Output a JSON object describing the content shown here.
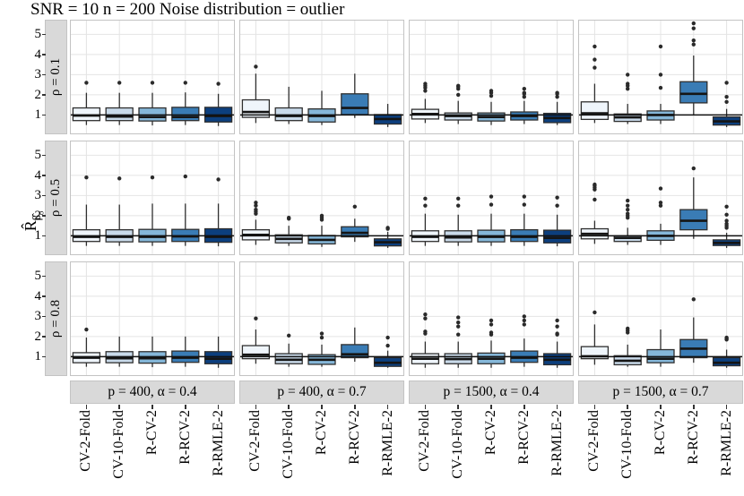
{
  "title": "SNR = 10 n = 200 Noise distribution = outlier",
  "ylabel": {
    "main": "R̂",
    "sub": "β̂",
    "subsub": "o"
  },
  "palette": {
    "box_fills": [
      "#eff5fb",
      "#c9daea",
      "#85b7d9",
      "#3a7cb5",
      "#0c3f7e"
    ],
    "box_stroke": "#2f2f2f",
    "median_line": "#151515",
    "reference_line": "#111111",
    "grid_major": "#e4e4e4",
    "panel_border": "#c3c3c3",
    "strip_background": "#d9d9d9",
    "outlier_point": "#2a2a2a"
  },
  "chart_data": {
    "type": "boxplot",
    "title": "SNR = 10 n = 200 Noise distribution = outlier",
    "ylabel": "R̂_β̂o",
    "facet_rows": [
      "ρ = 0.1",
      "ρ = 0.5",
      "ρ = 0.8"
    ],
    "facet_cols": [
      "p = 400, α = 0.4",
      "p = 400, α = 0.7",
      "p = 1500, α = 0.4",
      "p = 1500, α = 0.7"
    ],
    "categories": [
      "CV-2-Fold",
      "CV-10-Fold",
      "R-CV-2",
      "R-RCV-2",
      "R-RMLE-2"
    ],
    "y_ticks": [
      1,
      2,
      3,
      4,
      5
    ],
    "ylim": [
      0.04,
      5.73
    ],
    "reference_line_y": 1,
    "grid": "major-horizontal-and-vertical",
    "legend": "none",
    "box_format": [
      "low_whisker",
      "q1",
      "median",
      "q3",
      "high_whisker",
      "outliers"
    ],
    "panels": [
      {
        "row": 0,
        "col": 0,
        "boxes": [
          [
            0.5,
            0.72,
            0.97,
            1.35,
            2.1,
            [
              2.6
            ]
          ],
          [
            0.5,
            0.72,
            0.92,
            1.35,
            2.1,
            [
              2.6
            ]
          ],
          [
            0.48,
            0.7,
            0.9,
            1.35,
            2.1,
            [
              2.6
            ]
          ],
          [
            0.5,
            0.72,
            0.9,
            1.38,
            2.12,
            [
              2.6
            ]
          ],
          [
            0.45,
            0.65,
            0.95,
            1.38,
            2.05,
            [
              2.55
            ]
          ]
        ]
      },
      {
        "row": 0,
        "col": 1,
        "boxes": [
          [
            0.6,
            0.88,
            1.15,
            1.75,
            3.05,
            [
              3.4
            ]
          ],
          [
            0.55,
            0.72,
            0.95,
            1.35,
            2.4,
            []
          ],
          [
            0.5,
            0.65,
            0.95,
            1.3,
            2.2,
            []
          ],
          [
            0.85,
            1.02,
            1.35,
            2.05,
            3.05,
            []
          ],
          [
            0.4,
            0.55,
            0.8,
            1.02,
            1.55,
            []
          ]
        ]
      },
      {
        "row": 0,
        "col": 2,
        "boxes": [
          [
            0.6,
            0.8,
            1.05,
            1.28,
            1.8,
            [
              2.2,
              2.35,
              2.45,
              2.55
            ]
          ],
          [
            0.55,
            0.75,
            0.95,
            1.1,
            1.7,
            [
              2.0,
              2.3,
              2.4,
              2.45
            ]
          ],
          [
            0.5,
            0.7,
            0.9,
            1.1,
            1.65,
            [
              1.95,
              2.1,
              2.2
            ]
          ],
          [
            0.55,
            0.75,
            0.95,
            1.15,
            1.7,
            [
              1.9,
              2.05,
              2.1,
              2.3
            ]
          ],
          [
            0.5,
            0.62,
            0.85,
            1.08,
            1.65,
            [
              1.9,
              2.05,
              2.1
            ]
          ]
        ]
      },
      {
        "row": 0,
        "col": 3,
        "boxes": [
          [
            0.6,
            0.78,
            1.08,
            1.65,
            2.55,
            [
              3.35,
              3.75,
              4.4
            ]
          ],
          [
            0.55,
            0.68,
            0.88,
            1.05,
            1.55,
            [
              2.3,
              2.45,
              2.55,
              3.0
            ]
          ],
          [
            0.55,
            0.75,
            1.0,
            1.2,
            1.55,
            [
              2.35,
              3.0,
              4.4
            ]
          ],
          [
            1.0,
            1.6,
            2.05,
            2.65,
            3.95,
            [
              4.5,
              4.7,
              5.3,
              5.55
            ]
          ],
          [
            0.4,
            0.5,
            0.68,
            0.9,
            1.3,
            [
              1.65,
              1.9,
              2.6
            ]
          ]
        ]
      },
      {
        "row": 1,
        "col": 0,
        "boxes": [
          [
            0.5,
            0.72,
            0.95,
            1.3,
            2.55,
            [
              3.9
            ]
          ],
          [
            0.5,
            0.7,
            0.95,
            1.3,
            2.55,
            [
              3.85
            ]
          ],
          [
            0.5,
            0.7,
            0.95,
            1.32,
            2.6,
            [
              3.9
            ]
          ],
          [
            0.5,
            0.72,
            0.97,
            1.32,
            2.6,
            [
              3.95
            ]
          ],
          [
            0.48,
            0.68,
            0.95,
            1.35,
            2.6,
            [
              3.8
            ]
          ]
        ]
      },
      {
        "row": 1,
        "col": 1,
        "boxes": [
          [
            0.55,
            0.8,
            1.05,
            1.3,
            1.8,
            [
              2.1,
              2.2,
              2.3,
              2.5,
              2.65
            ]
          ],
          [
            0.5,
            0.65,
            0.85,
            1.05,
            1.5,
            [
              1.85,
              1.9
            ]
          ],
          [
            0.45,
            0.6,
            0.8,
            1.02,
            1.5,
            [
              1.8,
              1.9,
              2.0
            ]
          ],
          [
            0.7,
            0.95,
            1.15,
            1.45,
            1.85,
            [
              2.45
            ]
          ],
          [
            0.4,
            0.5,
            0.68,
            0.85,
            1.2,
            [
              1.35,
              1.4
            ]
          ]
        ]
      },
      {
        "row": 1,
        "col": 2,
        "boxes": [
          [
            0.5,
            0.72,
            0.95,
            1.25,
            2.1,
            [
              2.5,
              2.85
            ]
          ],
          [
            0.5,
            0.7,
            0.92,
            1.25,
            2.05,
            [
              2.5,
              2.85
            ]
          ],
          [
            0.5,
            0.7,
            0.95,
            1.28,
            2.1,
            [
              2.55,
              2.95
            ]
          ],
          [
            0.5,
            0.72,
            0.95,
            1.3,
            2.1,
            [
              2.55,
              2.95
            ]
          ],
          [
            0.48,
            0.65,
            0.9,
            1.28,
            2.05,
            [
              2.5,
              2.9
            ]
          ]
        ]
      },
      {
        "row": 1,
        "col": 3,
        "boxes": [
          [
            0.6,
            0.85,
            1.1,
            1.35,
            1.75,
            [
              2.8,
              3.3,
              3.4,
              3.5,
              3.55
            ]
          ],
          [
            0.55,
            0.72,
            0.9,
            1.0,
            1.4,
            [
              1.9,
              2.0,
              2.1,
              2.3,
              2.5,
              2.75
            ]
          ],
          [
            0.55,
            0.78,
            1.0,
            1.25,
            1.6,
            [
              2.5,
              2.65,
              3.35
            ]
          ],
          [
            0.85,
            1.3,
            1.75,
            2.3,
            3.9,
            [
              4.35
            ]
          ],
          [
            0.4,
            0.52,
            0.65,
            0.8,
            1.15,
            [
              1.4,
              1.5,
              1.6,
              1.75,
              2.05,
              2.45
            ]
          ]
        ]
      },
      {
        "row": 2,
        "col": 0,
        "boxes": [
          [
            0.5,
            0.7,
            0.95,
            1.2,
            1.95,
            [
              2.35
            ]
          ],
          [
            0.5,
            0.7,
            0.92,
            1.25,
            2.0,
            []
          ],
          [
            0.48,
            0.68,
            0.92,
            1.25,
            2.0,
            []
          ],
          [
            0.5,
            0.72,
            0.95,
            1.28,
            2.0,
            []
          ],
          [
            0.45,
            0.65,
            0.9,
            1.25,
            2.0,
            []
          ]
        ]
      },
      {
        "row": 2,
        "col": 1,
        "boxes": [
          [
            0.65,
            0.9,
            1.1,
            1.55,
            2.35,
            [
              2.9
            ]
          ],
          [
            0.5,
            0.65,
            0.85,
            1.15,
            1.65,
            [
              2.05
            ]
          ],
          [
            0.5,
            0.62,
            0.85,
            1.1,
            1.6,
            [
              1.95,
              2.15
            ]
          ],
          [
            0.75,
            0.95,
            1.12,
            1.6,
            2.45,
            []
          ],
          [
            0.45,
            0.52,
            0.7,
            0.95,
            1.3,
            [
              1.55,
              1.95
            ]
          ]
        ]
      },
      {
        "row": 2,
        "col": 2,
        "boxes": [
          [
            0.45,
            0.65,
            0.9,
            1.15,
            1.75,
            [
              2.15,
              2.25,
              2.9,
              3.1
            ]
          ],
          [
            0.45,
            0.65,
            0.88,
            1.15,
            1.75,
            [
              2.1,
              2.5,
              2.7,
              2.95
            ]
          ],
          [
            0.45,
            0.65,
            0.9,
            1.18,
            1.8,
            [
              2.1,
              2.2,
              2.6,
              2.8
            ]
          ],
          [
            0.5,
            0.72,
            0.95,
            1.28,
            1.9,
            [
              2.6,
              2.8,
              3.0
            ]
          ],
          [
            0.45,
            0.6,
            0.85,
            1.15,
            1.75,
            [
              2.1,
              2.15,
              2.5,
              2.8
            ]
          ]
        ]
      },
      {
        "row": 2,
        "col": 3,
        "boxes": [
          [
            0.6,
            0.9,
            1.02,
            1.5,
            2.6,
            [
              3.2
            ]
          ],
          [
            0.5,
            0.6,
            0.8,
            1.05,
            1.6,
            [
              2.2,
              2.3,
              2.4
            ]
          ],
          [
            0.5,
            0.7,
            0.9,
            1.35,
            2.35,
            []
          ],
          [
            0.7,
            0.95,
            1.4,
            1.85,
            2.95,
            [
              3.85
            ]
          ],
          [
            0.45,
            0.55,
            0.7,
            0.95,
            1.35,
            [
              1.85,
              1.9,
              1.95
            ]
          ]
        ]
      }
    ]
  }
}
